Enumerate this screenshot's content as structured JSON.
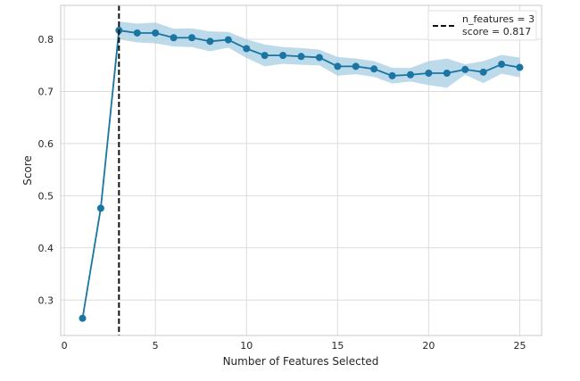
{
  "chart_data": {
    "type": "line",
    "title": "",
    "xlabel": "Number of Features Selected",
    "ylabel": "Score",
    "xlim": [
      -0.2,
      26.2
    ],
    "ylim": [
      0.232,
      0.865
    ],
    "xticks": [
      0,
      5,
      10,
      15,
      20,
      25
    ],
    "yticks": [
      0.3,
      0.4,
      0.5,
      0.6,
      0.7,
      0.8
    ],
    "xtick_labels": [
      "0",
      "5",
      "10",
      "15",
      "20",
      "25"
    ],
    "ytick_labels": [
      "0.3",
      "0.4",
      "0.5",
      "0.6",
      "0.7",
      "0.8"
    ],
    "grid": true,
    "legend_position": "top-right",
    "series": [
      {
        "x": [
          1,
          2,
          3,
          4,
          5,
          6,
          7,
          8,
          9,
          10,
          11,
          12,
          13,
          14,
          15,
          16,
          17,
          18,
          19,
          20,
          21,
          22,
          23,
          24,
          25
        ],
        "values": [
          0.265,
          0.476,
          0.817,
          0.812,
          0.812,
          0.803,
          0.803,
          0.796,
          0.799,
          0.782,
          0.769,
          0.769,
          0.767,
          0.765,
          0.748,
          0.748,
          0.743,
          0.73,
          0.732,
          0.735,
          0.735,
          0.742,
          0.737,
          0.752,
          0.746
        ],
        "band_upper": [
          0.268,
          0.485,
          0.834,
          0.83,
          0.832,
          0.82,
          0.821,
          0.815,
          0.814,
          0.8,
          0.79,
          0.785,
          0.783,
          0.78,
          0.766,
          0.763,
          0.758,
          0.745,
          0.745,
          0.758,
          0.763,
          0.752,
          0.758,
          0.77,
          0.765
        ],
        "band_lower": [
          0.262,
          0.467,
          0.8,
          0.794,
          0.792,
          0.786,
          0.785,
          0.777,
          0.784,
          0.764,
          0.748,
          0.753,
          0.751,
          0.75,
          0.73,
          0.733,
          0.728,
          0.715,
          0.719,
          0.712,
          0.707,
          0.732,
          0.716,
          0.734,
          0.727
        ]
      }
    ],
    "vline": {
      "x": 3,
      "style": "dashed"
    },
    "legend_entries": [
      "n_features = 3",
      "score = 0.817"
    ]
  },
  "colors": {
    "line": "#1a75a3",
    "band": "#a6cde2",
    "vline": "#111111",
    "grid": "#dcdcdc",
    "frame": "#c9c9c9"
  }
}
